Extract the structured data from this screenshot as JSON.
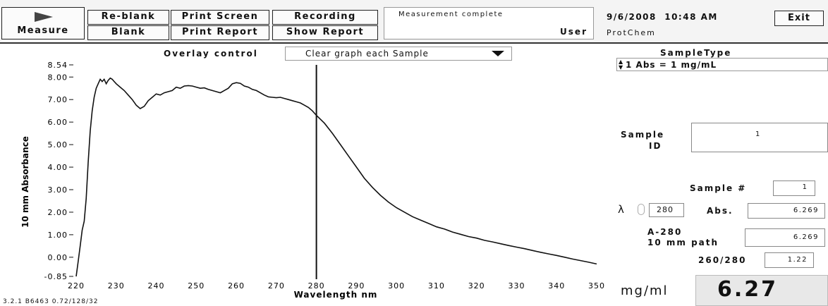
{
  "toolbar": {
    "measure": "Measure",
    "reblank": "Re-blank",
    "blank": "Blank",
    "print_screen": "Print Screen",
    "print_report": "Print Report",
    "recording": "Recording",
    "show_report": "Show Report",
    "status": "Measurement complete",
    "user_label": "User",
    "datetime": "9/6/2008  10:48 AM",
    "user": "ProtChem",
    "exit": "Exit"
  },
  "overlay": {
    "label": "Overlay control",
    "value": "Clear graph each Sample"
  },
  "sample_type": {
    "label": "SampleType",
    "value": "1 Abs = 1 mg/mL"
  },
  "sample_id": {
    "label_line1": "Sample",
    "label_line2": "ID",
    "value": "1"
  },
  "sample_num": {
    "label": "Sample #",
    "value": "1"
  },
  "lambda": {
    "symbol": "λ",
    "value": "280"
  },
  "abs": {
    "label": "Abs.",
    "value": "6.269"
  },
  "a280": {
    "label_line1": "A-280",
    "label_line2": "10 mm path",
    "value": "6.269"
  },
  "ratio": {
    "label": "260/280",
    "value": "1.22"
  },
  "result": {
    "unit": "mg/ml",
    "value": "6.27"
  },
  "version": "3.2.1 B6463 0.72/128/32",
  "chart_data": {
    "type": "line",
    "xlabel": "Wavelength nm",
    "ylabel": "10 mm Absorbance",
    "xlim": [
      220,
      350
    ],
    "ylim": [
      -0.85,
      8.54
    ],
    "x_ticks": [
      "220",
      "230",
      "240",
      "250",
      "260",
      "270",
      "280",
      "290",
      "300",
      "310",
      "320",
      "330",
      "340",
      "350"
    ],
    "y_ticks": [
      "8.54",
      "8.00",
      "7.00",
      "6.00",
      "5.00",
      "4.00",
      "3.00",
      "2.00",
      "1.00",
      "0.00",
      "-0.85"
    ],
    "cursor_x": 280,
    "series": [
      {
        "x": [
          220,
          220.5,
          221,
          221.5,
          222,
          222.5,
          223,
          223.5,
          224,
          224.5,
          225,
          225.5,
          226,
          226.5,
          227,
          227.5,
          228,
          228.5,
          229,
          229.5,
          230,
          231,
          232,
          233,
          234,
          235,
          236,
          237,
          238,
          239,
          240,
          241,
          242,
          243,
          244,
          245,
          246,
          247,
          248,
          249,
          250,
          251,
          252,
          253,
          254,
          255,
          256,
          257,
          258,
          259,
          260,
          261,
          262,
          263,
          264,
          265,
          266,
          267,
          268,
          269,
          270,
          271,
          272,
          273,
          274,
          275,
          276,
          277,
          278,
          279,
          280,
          282,
          284,
          286,
          288,
          290,
          292,
          294,
          296,
          298,
          300,
          302,
          304,
          306,
          308,
          310,
          312,
          314,
          316,
          318,
          320,
          322,
          324,
          326,
          328,
          330,
          332,
          334,
          336,
          338,
          340,
          342,
          344,
          346,
          348,
          350
        ],
        "y": [
          -0.85,
          -0.2,
          0.5,
          1.2,
          1.6,
          2.6,
          4.2,
          5.6,
          6.5,
          7.1,
          7.5,
          7.7,
          7.9,
          7.8,
          7.9,
          7.7,
          7.85,
          7.95,
          7.9,
          7.8,
          7.7,
          7.55,
          7.4,
          7.2,
          7.0,
          6.75,
          6.6,
          6.7,
          6.95,
          7.1,
          7.25,
          7.2,
          7.3,
          7.35,
          7.4,
          7.55,
          7.5,
          7.6,
          7.62,
          7.6,
          7.55,
          7.5,
          7.52,
          7.45,
          7.4,
          7.35,
          7.3,
          7.4,
          7.5,
          7.7,
          7.75,
          7.72,
          7.6,
          7.55,
          7.45,
          7.4,
          7.3,
          7.2,
          7.12,
          7.1,
          7.08,
          7.1,
          7.05,
          7.0,
          6.95,
          6.9,
          6.85,
          6.75,
          6.65,
          6.5,
          6.3,
          5.95,
          5.5,
          5.0,
          4.5,
          4.0,
          3.5,
          3.1,
          2.75,
          2.45,
          2.2,
          2.0,
          1.8,
          1.65,
          1.5,
          1.35,
          1.25,
          1.12,
          1.02,
          0.92,
          0.85,
          0.75,
          0.68,
          0.6,
          0.52,
          0.45,
          0.38,
          0.3,
          0.22,
          0.15,
          0.08,
          0.0,
          -0.08,
          -0.15,
          -0.22,
          -0.3
        ]
      }
    ]
  }
}
